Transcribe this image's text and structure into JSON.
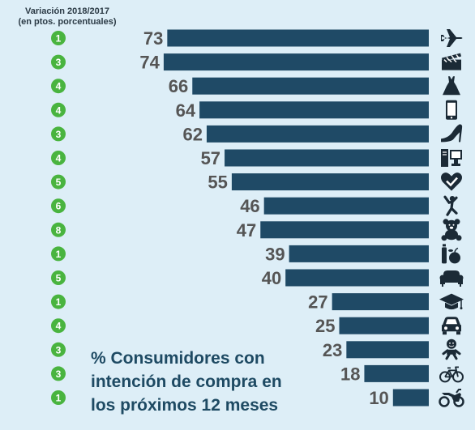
{
  "header": {
    "line1": "Variación 2018/2017",
    "line2": "(en ptos. porcentuales)"
  },
  "caption": {
    "line1": "% Consumidores con",
    "line2": "intención de compra en",
    "line3": "los próximos 12 meses"
  },
  "colors": {
    "background": "#ddeef7",
    "bar": "#1f4a66",
    "badge": "#49b43f",
    "value_text": "#555555",
    "icon": "#1b2a36"
  },
  "chart_data": {
    "type": "bar",
    "orientation": "horizontal",
    "xlim": [
      0,
      80
    ],
    "categories": [
      "plane-icon",
      "clapperboard-icon",
      "dress-icon",
      "smartphone-icon",
      "high-heel-icon",
      "computer-icon",
      "heart-check-icon",
      "fitness-icon",
      "teddy-bear-icon",
      "groceries-icon",
      "sofa-icon",
      "graduation-cap-icon",
      "car-icon",
      "baby-icon",
      "bicycle-icon",
      "motorcycle-icon"
    ],
    "values": [
      73,
      74,
      66,
      64,
      62,
      57,
      55,
      46,
      47,
      39,
      40,
      27,
      25,
      23,
      18,
      10
    ],
    "value_labels": [
      "73",
      "74",
      "66",
      "64",
      "62",
      "57",
      "55",
      "46",
      "47",
      "39",
      "40",
      "27",
      "25",
      "23",
      "18",
      "10"
    ],
    "variation": [
      1,
      3,
      4,
      4,
      3,
      4,
      5,
      6,
      8,
      1,
      5,
      1,
      4,
      3,
      3,
      1
    ],
    "variation_labels": [
      "1",
      "3",
      "4",
      "4",
      "3",
      "4",
      "5",
      "6",
      "8",
      "1",
      "5",
      "1",
      "4",
      "3",
      "3",
      "1"
    ]
  }
}
